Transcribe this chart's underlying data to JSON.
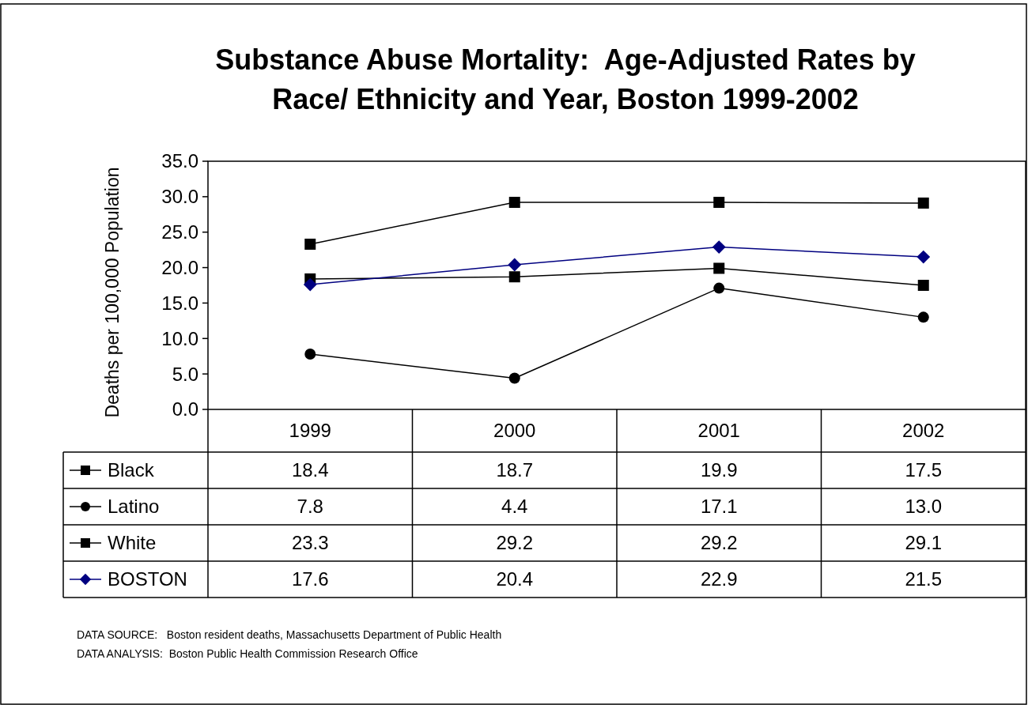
{
  "chart_data": {
    "type": "line",
    "title": "Substance Abuse Mortality:  Age-Adjusted Rates by Race/ Ethnicity and Year, Boston 1999-2002",
    "ylabel": "Deaths per 100,000 Population",
    "categories": [
      "1999",
      "2000",
      "2001",
      "2002"
    ],
    "series": [
      {
        "name": "Black",
        "color": "#000000",
        "marker": "square",
        "values": [
          18.4,
          18.7,
          19.9,
          17.5
        ],
        "value_labels": [
          "18.4",
          "18.7",
          "19.9",
          "17.5"
        ]
      },
      {
        "name": "Latino",
        "color": "#000000",
        "marker": "circle",
        "values": [
          7.8,
          4.4,
          17.1,
          13.0
        ],
        "value_labels": [
          "7.8",
          "4.4",
          "17.1",
          "13.0"
        ]
      },
      {
        "name": "White",
        "color": "#000000",
        "marker": "square",
        "values": [
          23.3,
          29.2,
          29.2,
          29.1
        ],
        "value_labels": [
          "23.3",
          "29.2",
          "29.2",
          "29.1"
        ]
      },
      {
        "name": "BOSTON",
        "color": "#000080",
        "marker": "diamond",
        "values": [
          17.6,
          20.4,
          22.9,
          21.5
        ],
        "value_labels": [
          "17.6",
          "20.4",
          "22.9",
          "21.5"
        ]
      }
    ],
    "ylim": [
      0,
      35
    ],
    "yticks": [
      {
        "value": 0,
        "label": "0.0"
      },
      {
        "value": 5,
        "label": "5.0"
      },
      {
        "value": 10,
        "label": "10.0"
      },
      {
        "value": 15,
        "label": "15.0"
      },
      {
        "value": 20,
        "label": "20.0"
      },
      {
        "value": 25,
        "label": "25.0"
      },
      {
        "value": 30,
        "label": "30.0"
      },
      {
        "value": 35,
        "label": "35.0"
      }
    ],
    "grid": false,
    "legend": "bottom",
    "annotations": [
      "DATA SOURCE:   Boston resident deaths, Massachusetts Department of Public Health",
      "DATA ANALYSIS:  Boston Public Health Commission Research Office"
    ]
  }
}
